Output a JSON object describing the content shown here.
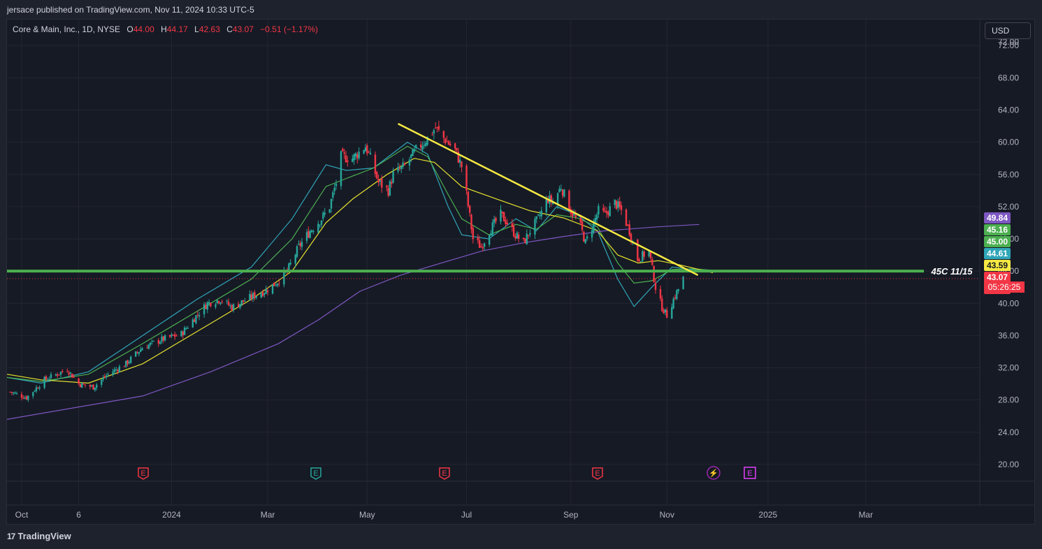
{
  "publisher_line": "jersace published on TradingView.com, Nov 11, 2024 10:33 UTC-5",
  "legend": {
    "symbol": "Core & Main, Inc., 1D, NYSE",
    "o_label": "O",
    "o_value": "44.00",
    "h_label": "H",
    "h_value": "44.17",
    "l_label": "L",
    "l_value": "42.63",
    "c_label": "C",
    "c_value": "43.07",
    "change": "−0.51 (−1.17%)"
  },
  "currency_button": "USD",
  "footer_brand": "TradingView",
  "footer_mark": "17",
  "colors": {
    "background": "#161a25",
    "grid": "#232632",
    "up": "#26a69a",
    "down": "#f23645",
    "trendline": "#f5e942",
    "support": "#4caf50",
    "ma_fast": "#2fa6b8",
    "ma_mid": "#4caf50",
    "ma_slow": "#e6e22e",
    "ma_200": "#7e57c2"
  },
  "chart_data": {
    "type": "candlestick",
    "title": "Core & Main, Inc., 1D, NYSE",
    "ylim": [
      18,
      72.8
    ],
    "y_ticks": [
      "72.00",
      "68.00",
      "64.00",
      "60.00",
      "56.00",
      "52.00",
      "48.00",
      "44.00",
      "40.00",
      "36.00",
      "32.00",
      "28.00",
      "24.00",
      "20.00"
    ],
    "x_ticks": [
      "Oct",
      "6",
      "2024",
      "Mar",
      "May",
      "Jul",
      "Sep",
      "Nov",
      "2025",
      "Mar"
    ],
    "grid": true,
    "price_path": [
      [
        "2023-09-25",
        29.0
      ],
      [
        "2023-10-05",
        28.3
      ],
      [
        "2023-10-16",
        30.5
      ],
      [
        "2023-10-30",
        31.8
      ],
      [
        "2023-11-06",
        30.0
      ],
      [
        "2023-11-15",
        29.6
      ],
      [
        "2023-11-24",
        31.2
      ],
      [
        "2023-12-05",
        32.5
      ],
      [
        "2023-12-15",
        34.5
      ],
      [
        "2023-12-27",
        35.5
      ],
      [
        "2024-01-08",
        36.2
      ],
      [
        "2024-01-17",
        38.4
      ],
      [
        "2024-01-24",
        40.0
      ],
      [
        "2024-02-01",
        40.5
      ],
      [
        "2024-02-08",
        39.5
      ],
      [
        "2024-02-20",
        40.8
      ],
      [
        "2024-02-28",
        41.5
      ],
      [
        "2024-03-06",
        42.5
      ],
      [
        "2024-03-13",
        44.0
      ],
      [
        "2024-03-20",
        47.0
      ],
      [
        "2024-03-27",
        49.0
      ],
      [
        "2024-04-03",
        50.5
      ],
      [
        "2024-04-08",
        52.0
      ],
      [
        "2024-04-12",
        55.0
      ],
      [
        "2024-04-15",
        58.2
      ],
      [
        "2024-04-22",
        58.0
      ],
      [
        "2024-04-30",
        59.5
      ],
      [
        "2024-05-03",
        58.0
      ],
      [
        "2024-05-08",
        55.0
      ],
      [
        "2024-05-14",
        54.0
      ],
      [
        "2024-05-17",
        56.0
      ],
      [
        "2024-05-24",
        57.0
      ],
      [
        "2024-05-31",
        59.0
      ],
      [
        "2024-06-07",
        60.5
      ],
      [
        "2024-06-12",
        61.8
      ],
      [
        "2024-06-17",
        60.5
      ],
      [
        "2024-06-24",
        59.0
      ],
      [
        "2024-06-28",
        57.0
      ],
      [
        "2024-07-01",
        53.5
      ],
      [
        "2024-07-05",
        48.0
      ],
      [
        "2024-07-10",
        47.0
      ],
      [
        "2024-07-15",
        49.0
      ],
      [
        "2024-07-22",
        51.0
      ],
      [
        "2024-07-26",
        50.0
      ],
      [
        "2024-07-31",
        48.5
      ],
      [
        "2024-08-05",
        47.5
      ],
      [
        "2024-08-09",
        49.0
      ],
      [
        "2024-08-14",
        50.5
      ],
      [
        "2024-08-20",
        53.0
      ],
      [
        "2024-08-23",
        52.5
      ],
      [
        "2024-08-28",
        54.5
      ],
      [
        "2024-09-03",
        51.5
      ],
      [
        "2024-09-09",
        49.5
      ],
      [
        "2024-09-12",
        47.5
      ],
      [
        "2024-09-17",
        50.0
      ],
      [
        "2024-09-20",
        51.5
      ],
      [
        "2024-09-24",
        51.0
      ],
      [
        "2024-09-30",
        52.5
      ],
      [
        "2024-10-04",
        51.5
      ],
      [
        "2024-10-09",
        49.0
      ],
      [
        "2024-10-14",
        45.5
      ],
      [
        "2024-10-21",
        46.5
      ],
      [
        "2024-10-25",
        42.0
      ],
      [
        "2024-10-29",
        39.5
      ],
      [
        "2024-11-01",
        38.5
      ],
      [
        "2024-11-05",
        40.5
      ],
      [
        "2024-11-11",
        43.07
      ]
    ],
    "moving_averages": [
      {
        "values": [
          [
            0,
            30.8
          ],
          [
            0.25,
            30.1
          ],
          [
            0.6,
            31.5
          ],
          [
            1.0,
            36.0
          ],
          [
            1.4,
            40.5
          ],
          [
            1.8,
            44.5
          ],
          [
            2.1,
            50.5
          ],
          [
            2.35,
            57.2
          ],
          [
            2.5,
            56.5
          ],
          [
            2.7,
            56.8
          ],
          [
            2.95,
            60.0
          ],
          [
            3.1,
            58.5
          ],
          [
            3.25,
            52.0
          ],
          [
            3.35,
            48.5
          ],
          [
            3.55,
            48.0
          ],
          [
            3.75,
            50.5
          ],
          [
            3.9,
            49.0
          ],
          [
            4.05,
            52.0
          ],
          [
            4.2,
            51.0
          ],
          [
            4.35,
            49.0
          ],
          [
            4.5,
            43.0
          ],
          [
            4.62,
            39.6
          ],
          [
            4.75,
            42.0
          ],
          [
            4.9,
            44.5
          ],
          [
            5.05,
            44.2
          ],
          [
            5.2,
            44.0
          ]
        ]
      },
      {
        "values": [
          [
            0,
            30.8
          ],
          [
            0.25,
            30.3
          ],
          [
            0.6,
            31.2
          ],
          [
            1.0,
            35.0
          ],
          [
            1.4,
            39.0
          ],
          [
            1.8,
            43.0
          ],
          [
            2.1,
            48.0
          ],
          [
            2.35,
            54.5
          ],
          [
            2.5,
            55.5
          ],
          [
            2.7,
            56.8
          ],
          [
            2.95,
            59.5
          ],
          [
            3.1,
            58.2
          ],
          [
            3.25,
            53.5
          ],
          [
            3.35,
            50.5
          ],
          [
            3.55,
            48.5
          ],
          [
            3.75,
            49.8
          ],
          [
            3.9,
            49.2
          ],
          [
            4.05,
            51.0
          ],
          [
            4.2,
            50.6
          ],
          [
            4.35,
            49.5
          ],
          [
            4.5,
            45.0
          ],
          [
            4.62,
            42.5
          ],
          [
            4.75,
            42.8
          ],
          [
            4.9,
            44.2
          ],
          [
            5.05,
            44.3
          ],
          [
            5.2,
            44.1
          ]
        ]
      },
      {
        "values": [
          [
            0,
            31.2
          ],
          [
            0.25,
            30.5
          ],
          [
            0.6,
            30.1
          ],
          [
            1.0,
            32.5
          ],
          [
            1.4,
            36.5
          ],
          [
            1.8,
            40.5
          ],
          [
            2.1,
            44.0
          ],
          [
            2.35,
            50.0
          ],
          [
            2.55,
            53.0
          ],
          [
            2.8,
            56.0
          ],
          [
            3.0,
            58.0
          ],
          [
            3.15,
            57.5
          ],
          [
            3.35,
            54.5
          ],
          [
            3.6,
            53.0
          ],
          [
            3.85,
            51.5
          ],
          [
            4.1,
            50.6
          ],
          [
            4.35,
            49.0
          ],
          [
            4.5,
            46.0
          ],
          [
            4.65,
            45.0
          ],
          [
            4.8,
            45.3
          ],
          [
            4.95,
            44.8
          ],
          [
            5.1,
            44.2
          ],
          [
            5.2,
            43.8
          ]
        ]
      },
      {
        "values": [
          [
            0,
            25.6
          ],
          [
            1.0,
            28.5
          ],
          [
            1.5,
            31.5
          ],
          [
            2.0,
            35.0
          ],
          [
            2.3,
            38.0
          ],
          [
            2.6,
            41.5
          ],
          [
            2.9,
            43.5
          ],
          [
            3.2,
            45.0
          ],
          [
            3.5,
            46.5
          ],
          [
            3.8,
            47.5
          ],
          [
            4.1,
            48.3
          ],
          [
            4.4,
            49.0
          ],
          [
            4.8,
            49.5
          ],
          [
            5.1,
            49.8
          ]
        ]
      }
    ],
    "trendline": [
      [
        "2024-05-20",
        62.3
      ],
      [
        "2024-11-20",
        43.5
      ]
    ],
    "support_line": {
      "value": 44.0,
      "label": "45C 11/15"
    },
    "last_price_line": 43.07,
    "price_badges": [
      {
        "value": "49.84",
        "color": "#7e57c2"
      },
      {
        "value": "45.16",
        "color": "#4caf50"
      },
      {
        "value": "45.00",
        "color": "#4caf50"
      },
      {
        "value": "44.61",
        "color": "#2fa6b8"
      },
      {
        "value": "43.59",
        "color": "#f5e942"
      },
      {
        "value": "43.07",
        "color": "#f23645",
        "countdown": "05:26:25"
      }
    ],
    "event_markers": [
      {
        "label": "E",
        "kind": "earnings",
        "color": "#f23645"
      },
      {
        "label": "E",
        "kind": "earnings",
        "color": "#26a69a"
      },
      {
        "label": "E",
        "kind": "earnings",
        "color": "#f23645"
      },
      {
        "label": "E",
        "kind": "earnings",
        "color": "#f23645"
      },
      {
        "label": "⚡",
        "kind": "split",
        "color": "#9c27b0"
      },
      {
        "label": "E",
        "kind": "earnings-upcoming",
        "color": "#e040fb"
      }
    ]
  }
}
